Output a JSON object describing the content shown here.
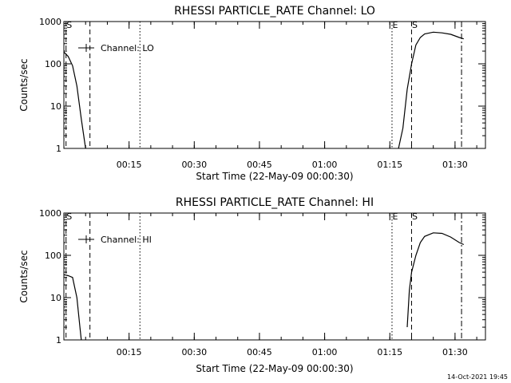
{
  "footer_timestamp": "14-Oct-2021 19:45",
  "chart_data": [
    {
      "type": "line",
      "title": "RHESSI PARTICLE_RATE Channel: LO",
      "xlabel": "Start Time (22-May-09 00:00:30)",
      "ylabel": "Counts/sec",
      "legend": "Channel: LO",
      "legend_placement": "top-left",
      "yscale": "log",
      "xlim_minutes": [
        0,
        97
      ],
      "ylim": [
        1,
        1000
      ],
      "x_tick_labels": [
        {
          "minutes": 15,
          "label": "00:15"
        },
        {
          "minutes": 30,
          "label": "00:30"
        },
        {
          "minutes": 45,
          "label": "00:45"
        },
        {
          "minutes": 60,
          "label": "01:00"
        },
        {
          "minutes": 75,
          "label": "01:15"
        },
        {
          "minutes": 90,
          "label": "01:30"
        }
      ],
      "y_tick_labels": [
        {
          "value": 1,
          "label": "1"
        },
        {
          "value": 10,
          "label": "10"
        },
        {
          "value": 100,
          "label": "100"
        },
        {
          "value": 1000,
          "label": "1000"
        }
      ],
      "vlines": [
        {
          "minutes": 0.5,
          "style": "dashed",
          "label": "S"
        },
        {
          "minutes": 6,
          "style": "dashed",
          "label": ""
        },
        {
          "minutes": 17.5,
          "style": "dotted",
          "label": ""
        },
        {
          "minutes": 75.5,
          "style": "dotted",
          "label": "E"
        },
        {
          "minutes": 80,
          "style": "dashed",
          "label": "S"
        },
        {
          "minutes": 91.5,
          "style": "dashdot",
          "label": ""
        }
      ],
      "series": [
        {
          "segments": [
            [
              [
                0,
                190
              ],
              [
                1,
                150
              ],
              [
                2,
                90
              ],
              [
                3,
                30
              ],
              [
                4,
                5
              ],
              [
                5,
                1
              ]
            ],
            [
              [
                77,
                1
              ],
              [
                78,
                3
              ],
              [
                79,
                25
              ],
              [
                80,
                100
              ],
              [
                81,
                280
              ],
              [
                82,
                420
              ],
              [
                83,
                510
              ],
              [
                85,
                560
              ],
              [
                87,
                540
              ],
              [
                89,
                500
              ],
              [
                91,
                420
              ],
              [
                92,
                390
              ]
            ]
          ]
        }
      ]
    },
    {
      "type": "line",
      "title": "RHESSI PARTICLE_RATE Channel: HI",
      "xlabel": "Start Time (22-May-09 00:00:30)",
      "ylabel": "Counts/sec",
      "legend": "Channel: HI",
      "legend_placement": "top-left",
      "yscale": "log",
      "xlim_minutes": [
        0,
        97
      ],
      "ylim": [
        1,
        1000
      ],
      "x_tick_labels": [
        {
          "minutes": 15,
          "label": "00:15"
        },
        {
          "minutes": 30,
          "label": "00:30"
        },
        {
          "minutes": 45,
          "label": "00:45"
        },
        {
          "minutes": 60,
          "label": "01:00"
        },
        {
          "minutes": 75,
          "label": "01:15"
        },
        {
          "minutes": 90,
          "label": "01:30"
        }
      ],
      "y_tick_labels": [
        {
          "value": 1,
          "label": "1"
        },
        {
          "value": 10,
          "label": "10"
        },
        {
          "value": 100,
          "label": "100"
        },
        {
          "value": 1000,
          "label": "1000"
        }
      ],
      "vlines": [
        {
          "minutes": 0.5,
          "style": "dashed",
          "label": "S"
        },
        {
          "minutes": 6,
          "style": "dashed",
          "label": ""
        },
        {
          "minutes": 17.5,
          "style": "dotted",
          "label": ""
        },
        {
          "minutes": 75.5,
          "style": "dotted",
          "label": "E"
        },
        {
          "minutes": 80,
          "style": "dashed",
          "label": "S"
        },
        {
          "minutes": 91.5,
          "style": "dashdot",
          "label": ""
        }
      ],
      "series": [
        {
          "segments": [
            [
              [
                0,
                35
              ],
              [
                1,
                33
              ],
              [
                2,
                30
              ],
              [
                3,
                10
              ],
              [
                3.7,
                2
              ],
              [
                4,
                1
              ]
            ],
            [
              [
                79,
                2
              ],
              [
                79.5,
                15
              ],
              [
                80,
                40
              ],
              [
                81,
                100
              ],
              [
                82,
                200
              ],
              [
                83,
                280
              ],
              [
                85,
                340
              ],
              [
                87,
                330
              ],
              [
                89,
                270
              ],
              [
                91,
                200
              ],
              [
                92,
                180
              ]
            ]
          ]
        }
      ]
    }
  ]
}
